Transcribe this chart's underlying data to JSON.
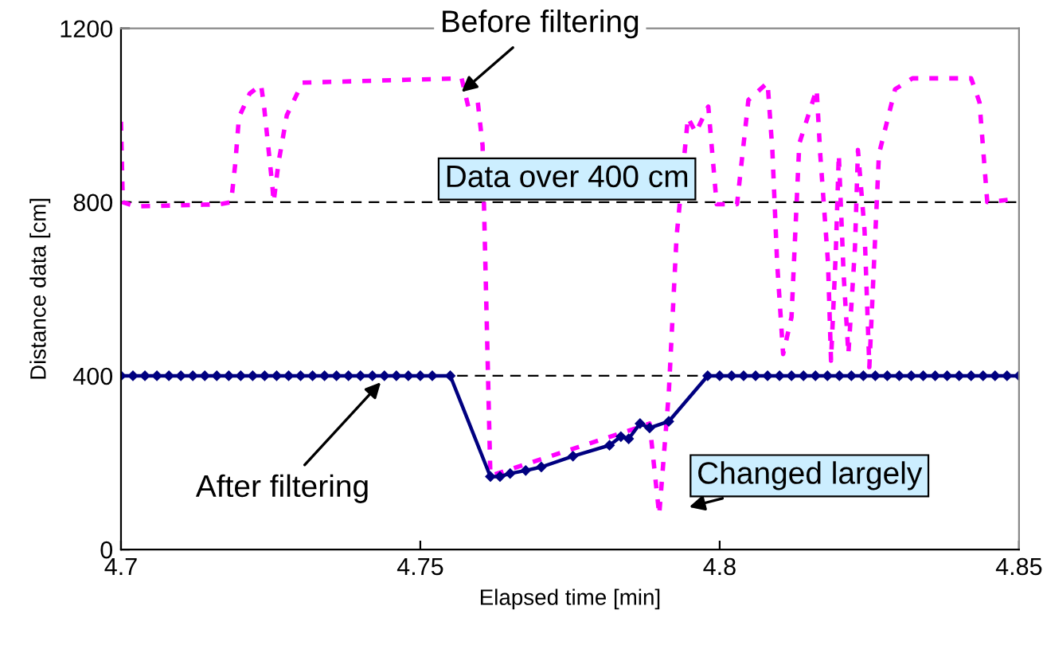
{
  "chart_data": {
    "type": "line",
    "xlabel": "Elapsed time [min]",
    "ylabel": "Distance data [cm]",
    "xlim": [
      4.7,
      4.85
    ],
    "xticks": [
      {
        "value": 4.7,
        "label": "4.7"
      },
      {
        "value": 4.75,
        "label": "4.75"
      },
      {
        "value": 4.8,
        "label": "4.8"
      },
      {
        "value": 4.85,
        "label": "4.85"
      }
    ],
    "ylim": [
      0,
      1200
    ],
    "yticks": [
      0,
      400,
      800,
      1200
    ],
    "grid": false,
    "legend": false,
    "series": [
      {
        "color": "#ff00ff",
        "line_style": "dotted",
        "marker": "none",
        "x": [
          4.7,
          4.7003,
          4.7024,
          4.7165,
          4.7184,
          4.7191,
          4.7197,
          4.7215,
          4.7234,
          4.7239,
          4.7253,
          4.7255,
          4.7263,
          4.7277,
          4.7303,
          4.7569,
          4.758,
          4.7596,
          4.7604,
          4.7617,
          4.7862,
          4.7883,
          4.7899,
          4.7915,
          4.7928,
          4.7947,
          4.796,
          4.7981,
          4.7995,
          4.8029,
          4.8048,
          4.808,
          4.8088,
          4.8096,
          4.8106,
          4.812,
          4.8133,
          4.8162,
          4.8168,
          4.8181,
          4.8186,
          4.8194,
          4.8199,
          4.8207,
          4.8215,
          4.8226,
          4.8231,
          4.8242,
          4.825,
          4.8266,
          4.8293,
          4.8322,
          4.842,
          4.8434,
          4.8447,
          4.8481
        ],
        "values": [
          985,
          800,
          790,
          795,
          800,
          890,
          995,
          1050,
          1070,
          1020,
          835,
          800,
          890,
          1000,
          1075,
          1085,
          1020,
          1030,
          930,
          170,
          280,
          290,
          80,
          360,
          720,
          995,
          960,
          1020,
          795,
          795,
          1035,
          1075,
          920,
          660,
          450,
          535,
          935,
          1060,
          910,
          660,
          435,
          685,
          910,
          635,
          450,
          695,
          920,
          735,
          420,
          910,
          1060,
          1085,
          1085,
          1030,
          800,
          805
        ]
      },
      {
        "color": "#000080",
        "line_style": "solid",
        "marker": "diamond",
        "x": [
          4.7,
          4.702,
          4.704,
          4.706,
          4.708,
          4.71,
          4.712,
          4.714,
          4.716,
          4.718,
          4.72,
          4.722,
          4.724,
          4.726,
          4.728,
          4.73,
          4.732,
          4.734,
          4.736,
          4.738,
          4.74,
          4.742,
          4.744,
          4.746,
          4.748,
          4.75,
          4.752,
          4.755,
          4.7617,
          4.7633,
          4.765,
          4.7676,
          4.7702,
          4.7755,
          4.7816,
          4.7835,
          4.7848,
          4.7867,
          4.7883,
          4.7915,
          4.798,
          4.8,
          4.802,
          4.804,
          4.806,
          4.808,
          4.81,
          4.812,
          4.814,
          4.816,
          4.818,
          4.82,
          4.822,
          4.824,
          4.826,
          4.828,
          4.83,
          4.832,
          4.834,
          4.836,
          4.838,
          4.84,
          4.842,
          4.844,
          4.846,
          4.848,
          4.85
        ],
        "values": [
          400,
          400,
          400,
          400,
          400,
          400,
          400,
          400,
          400,
          400,
          400,
          400,
          400,
          400,
          400,
          400,
          400,
          400,
          400,
          400,
          400,
          400,
          400,
          400,
          400,
          400,
          400,
          400,
          168,
          168,
          175,
          182,
          190,
          215,
          240,
          260,
          255,
          290,
          280,
          295,
          400,
          400,
          400,
          400,
          400,
          400,
          400,
          400,
          400,
          400,
          400,
          400,
          400,
          400,
          400,
          400,
          400,
          400,
          400,
          400,
          400,
          400,
          400,
          400,
          400,
          400,
          400
        ]
      }
    ],
    "ref_lines": [
      {
        "axis": "y",
        "value": 800,
        "label": "Data over 400 cm",
        "color": "#000000",
        "line_style": "dashed"
      },
      {
        "axis": "y",
        "value": 400,
        "color": "#000000",
        "line_style": "dashed"
      }
    ],
    "annotations": [
      {
        "text": "Before filtering",
        "x": 4.7566,
        "y": 1050
      },
      {
        "text": "After filtering",
        "x": 4.7444,
        "y": 400
      },
      {
        "text": "Changed largely",
        "x": 4.7899,
        "y": 80
      }
    ]
  }
}
